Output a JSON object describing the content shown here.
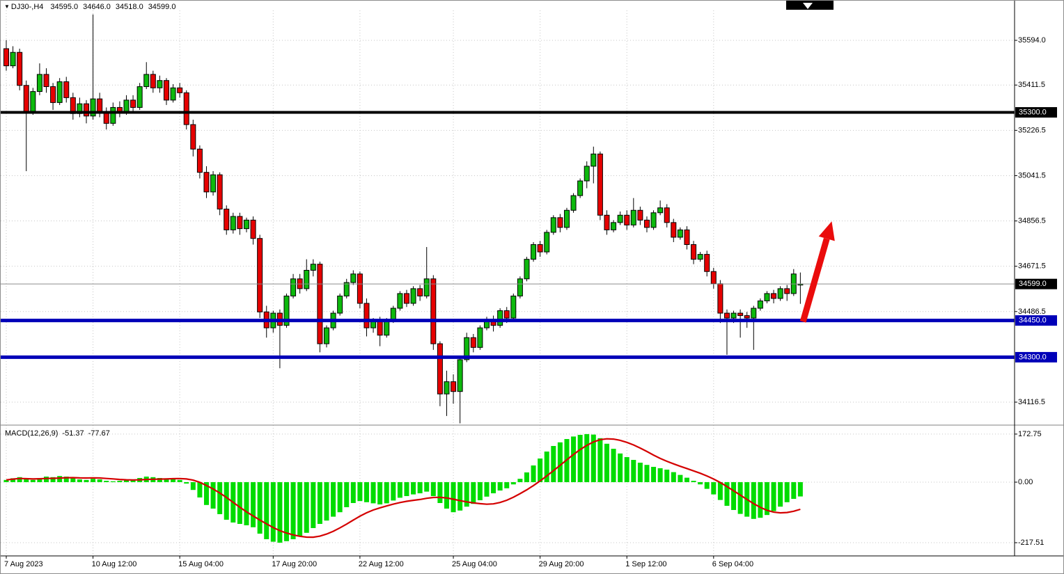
{
  "info_bar": {
    "symbol_period": "DJ30-,H4",
    "open": "34595.0",
    "high": "34646.0",
    "low": "34518.0",
    "close": "34599.0"
  },
  "macd_info": {
    "label": "MACD(12,26,9)",
    "value": "-51.37",
    "signal": "-77.67"
  },
  "chart_data": {
    "type": "candlestick",
    "symbol": "DJ30-",
    "period": "H4",
    "title": "DJ30-,H4 34595.0 34646.0 34518.0 34599.0",
    "colors": {
      "bull": "#0db90d",
      "bear": "#e60000",
      "wick": "#000000",
      "grid": "#c6c6c6",
      "arrow": "#ea0c0c",
      "level_blue": "#0000b8",
      "level_black": "#000000",
      "current_price_line": "#8c8c8c",
      "macd_histogram": "#00dc00",
      "macd_signal": "#d40000"
    },
    "price_axis": {
      "ticks": [
        35594.0,
        35411.5,
        35226.5,
        35041.5,
        34856.5,
        34671.5,
        34486.5,
        34116.5
      ],
      "special_labels": [
        {
          "value": 35300.0,
          "bg": "#000000",
          "name": "resistance-level-label"
        },
        {
          "value": 34599.0,
          "bg": "#000000",
          "name": "current-price-label"
        },
        {
          "value": 34450.0,
          "bg": "#0000b8",
          "name": "support-level-label"
        },
        {
          "value": 34300.0,
          "bg": "#0000b8",
          "name": "support-level-label"
        }
      ]
    },
    "hlines": [
      {
        "price": 35300.0,
        "color": "#000000",
        "width": 4
      },
      {
        "price": 34450.0,
        "color": "#0000b8",
        "width": 5
      },
      {
        "price": 34300.0,
        "color": "#0000b8",
        "width": 5
      }
    ],
    "current_price": 34599.0,
    "x_axis": {
      "labels": [
        {
          "i": 0,
          "t": "7 Aug 2023"
        },
        {
          "i": 13,
          "t": "10 Aug 12:00"
        },
        {
          "i": 26,
          "t": "15 Aug 04:00"
        },
        {
          "i": 40,
          "t": "17 Aug 20:00"
        },
        {
          "i": 53,
          "t": "22 Aug 12:00"
        },
        {
          "i": 67,
          "t": "25 Aug 04:00"
        },
        {
          "i": 80,
          "t": "29 Aug 20:00"
        },
        {
          "i": 93,
          "t": "1 Sep 12:00"
        },
        {
          "i": 106,
          "t": "6 Sep 04:00"
        }
      ]
    },
    "candles": [
      [
        35560,
        35595,
        35470,
        35490
      ],
      [
        35490,
        35570,
        35480,
        35545
      ],
      [
        35545,
        35560,
        35390,
        35410
      ],
      [
        35410,
        35430,
        35060,
        35300
      ],
      [
        35300,
        35400,
        35290,
        35385
      ],
      [
        35385,
        35500,
        35370,
        35455
      ],
      [
        35455,
        35480,
        35380,
        35405
      ],
      [
        35405,
        35420,
        35310,
        35340
      ],
      [
        35340,
        35440,
        35330,
        35425
      ],
      [
        35425,
        35445,
        35340,
        35360
      ],
      [
        35360,
        35380,
        35270,
        35295
      ],
      [
        35295,
        35360,
        35280,
        35335
      ],
      [
        35335,
        35350,
        35255,
        35285
      ],
      [
        35285,
        35700,
        35270,
        35355
      ],
      [
        35355,
        35380,
        35280,
        35300
      ],
      [
        35300,
        35320,
        35230,
        35255
      ],
      [
        35255,
        35340,
        35245,
        35320
      ],
      [
        35320,
        35345,
        35280,
        35300
      ],
      [
        35300,
        35370,
        35290,
        35350
      ],
      [
        35350,
        35370,
        35300,
        35320
      ],
      [
        35320,
        35420,
        35310,
        35405
      ],
      [
        35405,
        35505,
        35395,
        35455
      ],
      [
        35455,
        35470,
        35380,
        35400
      ],
      [
        35400,
        35450,
        35380,
        35430
      ],
      [
        35430,
        35440,
        35330,
        35350
      ],
      [
        35350,
        35415,
        35340,
        35400
      ],
      [
        35400,
        35420,
        35360,
        35380
      ],
      [
        35380,
        35390,
        35230,
        35250
      ],
      [
        35250,
        35270,
        35120,
        35150
      ],
      [
        35150,
        35165,
        35030,
        35055
      ],
      [
        35055,
        35080,
        34950,
        34975
      ],
      [
        34975,
        35060,
        34960,
        35045
      ],
      [
        35045,
        35055,
        34880,
        34905
      ],
      [
        34905,
        34920,
        34800,
        34820
      ],
      [
        34820,
        34890,
        34805,
        34875
      ],
      [
        34875,
        34890,
        34800,
        34825
      ],
      [
        34825,
        34870,
        34810,
        34860
      ],
      [
        34860,
        34875,
        34760,
        34785
      ],
      [
        34785,
        34800,
        34460,
        34485
      ],
      [
        34485,
        34510,
        34380,
        34420
      ],
      [
        34420,
        34490,
        34400,
        34480
      ],
      [
        34480,
        34495,
        34255,
        34430
      ],
      [
        34430,
        34560,
        34420,
        34550
      ],
      [
        34550,
        34640,
        34540,
        34620
      ],
      [
        34620,
        34640,
        34560,
        34580
      ],
      [
        34580,
        34700,
        34570,
        34655
      ],
      [
        34655,
        34700,
        34630,
        34680
      ],
      [
        34680,
        34690,
        34320,
        34355
      ],
      [
        34355,
        34430,
        34340,
        34420
      ],
      [
        34420,
        34490,
        34410,
        34480
      ],
      [
        34480,
        34560,
        34470,
        34550
      ],
      [
        34550,
        34620,
        34540,
        34605
      ],
      [
        34605,
        34655,
        34595,
        34640
      ],
      [
        34640,
        34650,
        34500,
        34520
      ],
      [
        34520,
        34540,
        34385,
        34420
      ],
      [
        34420,
        34460,
        34400,
        34450
      ],
      [
        34450,
        34465,
        34345,
        34390
      ],
      [
        34390,
        34460,
        34380,
        34450
      ],
      [
        34450,
        34510,
        34440,
        34500
      ],
      [
        34500,
        34570,
        34490,
        34560
      ],
      [
        34560,
        34575,
        34505,
        34520
      ],
      [
        34520,
        34590,
        34510,
        34580
      ],
      [
        34580,
        34595,
        34530,
        34550
      ],
      [
        34550,
        34750,
        34540,
        34620
      ],
      [
        34620,
        34635,
        34330,
        34355
      ],
      [
        34355,
        34365,
        34100,
        34150
      ],
      [
        34150,
        34245,
        34060,
        34200
      ],
      [
        34200,
        34230,
        34110,
        34160
      ],
      [
        34160,
        34300,
        34030,
        34290
      ],
      [
        34290,
        34400,
        34280,
        34380
      ],
      [
        34380,
        34395,
        34320,
        34340
      ],
      [
        34340,
        34430,
        34330,
        34420
      ],
      [
        34420,
        34465,
        34410,
        34455
      ],
      [
        34455,
        34470,
        34405,
        34430
      ],
      [
        34430,
        34500,
        34420,
        34490
      ],
      [
        34490,
        34505,
        34440,
        34460
      ],
      [
        34460,
        34560,
        34450,
        34550
      ],
      [
        34550,
        34630,
        34540,
        34620
      ],
      [
        34620,
        34710,
        34610,
        34700
      ],
      [
        34700,
        34770,
        34690,
        34760
      ],
      [
        34760,
        34775,
        34710,
        34730
      ],
      [
        34730,
        34820,
        34720,
        34810
      ],
      [
        34810,
        34880,
        34800,
        34870
      ],
      [
        34870,
        34885,
        34810,
        34830
      ],
      [
        34830,
        34910,
        34820,
        34900
      ],
      [
        34900,
        34970,
        34890,
        34960
      ],
      [
        34960,
        35030,
        34950,
        35020
      ],
      [
        35020,
        35100,
        34990,
        35080
      ],
      [
        35080,
        35160,
        35010,
        35130
      ],
      [
        35130,
        35140,
        34860,
        34880
      ],
      [
        34880,
        34900,
        34800,
        34820
      ],
      [
        34820,
        34860,
        34810,
        34850
      ],
      [
        34850,
        34895,
        34840,
        34880
      ],
      [
        34880,
        34900,
        34820,
        34840
      ],
      [
        34840,
        34950,
        34830,
        34900
      ],
      [
        34900,
        34915,
        34840,
        34860
      ],
      [
        34860,
        34875,
        34810,
        34830
      ],
      [
        34830,
        34900,
        34820,
        34890
      ],
      [
        34890,
        34940,
        34880,
        34910
      ],
      [
        34910,
        34925,
        34830,
        34850
      ],
      [
        34850,
        34865,
        34770,
        34790
      ],
      [
        34790,
        34830,
        34780,
        34820
      ],
      [
        34820,
        34835,
        34740,
        34760
      ],
      [
        34760,
        34775,
        34680,
        34700
      ],
      [
        34700,
        34730,
        34690,
        34720
      ],
      [
        34720,
        34735,
        34630,
        34650
      ],
      [
        34650,
        34665,
        34580,
        34600
      ],
      [
        34600,
        34615,
        34440,
        34480
      ],
      [
        34480,
        34495,
        34310,
        34460
      ],
      [
        34460,
        34490,
        34440,
        34480
      ],
      [
        34480,
        34495,
        34380,
        34470
      ],
      [
        34470,
        34485,
        34420,
        34460
      ],
      [
        34460,
        34510,
        34330,
        34500
      ],
      [
        34500,
        34540,
        34490,
        34530
      ],
      [
        34530,
        34570,
        34520,
        34560
      ],
      [
        34560,
        34575,
        34520,
        34540
      ],
      [
        34540,
        34590,
        34530,
        34580
      ],
      [
        34580,
        34595,
        34530,
        34560
      ],
      [
        34560,
        34660,
        34550,
        34640
      ],
      [
        34595,
        34646,
        34518,
        34599
      ]
    ],
    "macd": {
      "label": "MACD(12,26,9)",
      "value": -51.37,
      "signal_value": -77.67,
      "signal_period": 9,
      "axis_ticks": [
        172.75,
        0.0,
        -217.51
      ],
      "histogram": [
        8,
        14,
        18,
        10,
        8,
        15,
        20,
        18,
        22,
        20,
        15,
        10,
        8,
        12,
        10,
        5,
        3,
        5,
        8,
        10,
        15,
        20,
        18,
        15,
        10,
        12,
        8,
        -5,
        -28,
        -55,
        -82,
        -95,
        -115,
        -135,
        -145,
        -150,
        -155,
        -162,
        -185,
        -205,
        -214,
        -217.51,
        -212,
        -205,
        -195,
        -182,
        -165,
        -150,
        -138,
        -124,
        -108,
        -90,
        -75,
        -68,
        -72,
        -76,
        -80,
        -76,
        -66,
        -56,
        -50,
        -44,
        -40,
        -34,
        -50,
        -75,
        -95,
        -108,
        -102,
        -88,
        -78,
        -65,
        -52,
        -40,
        -30,
        -22,
        -8,
        12,
        35,
        60,
        85,
        110,
        130,
        143,
        155,
        164,
        170,
        172.75,
        171,
        158,
        138,
        120,
        103,
        90,
        80,
        70,
        62,
        55,
        50,
        45,
        36,
        26,
        16,
        5,
        -8,
        -24,
        -44,
        -64,
        -85,
        -100,
        -114,
        -124,
        -132,
        -128,
        -118,
        -104,
        -88,
        -72,
        -60,
        -51.37
      ]
    },
    "arrow": {
      "from": {
        "index": 119.4,
        "price": 34445
      },
      "to": {
        "index": 123.7,
        "price": 34855
      }
    }
  }
}
